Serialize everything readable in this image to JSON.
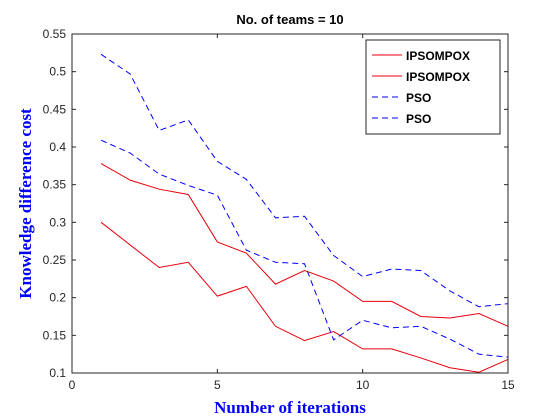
{
  "chart_data": {
    "type": "line",
    "title": "No. of teams = 10",
    "xlabel": "Number of iterations",
    "ylabel": "Knowledge difference cost",
    "xlim": [
      0,
      15
    ],
    "ylim": [
      0.1,
      0.55
    ],
    "xticks": [
      0,
      5,
      10,
      15
    ],
    "yticks": [
      0.1,
      0.15,
      0.2,
      0.25,
      0.3,
      0.35,
      0.4,
      0.45,
      0.5,
      0.55
    ],
    "grid": false,
    "legend_position": "top-right",
    "x": [
      1,
      2,
      3,
      4,
      5,
      6,
      7,
      8,
      9,
      10,
      11,
      12,
      13,
      14,
      15
    ],
    "series": [
      {
        "name": "IPSOMPOX",
        "color": "#e8000b",
        "dash": "solid",
        "values": [
          0.378,
          0.356,
          0.344,
          0.337,
          0.274,
          0.259,
          0.218,
          0.236,
          0.222,
          0.195,
          0.195,
          0.175,
          0.173,
          0.179,
          0.162
        ]
      },
      {
        "name": "IPSOMPOX",
        "color": "#e8000b",
        "dash": "solid",
        "values": [
          0.3,
          0.27,
          0.24,
          0.247,
          0.202,
          0.215,
          0.162,
          0.143,
          0.155,
          0.132,
          0.132,
          0.12,
          0.107,
          0.101,
          0.118
        ]
      },
      {
        "name": "PSO",
        "color": "#0000ff",
        "dash": "dashed",
        "values": [
          0.523,
          0.497,
          0.422,
          0.436,
          0.381,
          0.357,
          0.306,
          0.308,
          0.256,
          0.228,
          0.238,
          0.236,
          0.209,
          0.188,
          0.192
        ]
      },
      {
        "name": "PSO",
        "color": "#0000ff",
        "dash": "dashed",
        "values": [
          0.409,
          0.392,
          0.364,
          0.349,
          0.336,
          0.263,
          0.247,
          0.245,
          0.144,
          0.17,
          0.16,
          0.162,
          0.145,
          0.125,
          0.121
        ]
      }
    ]
  }
}
